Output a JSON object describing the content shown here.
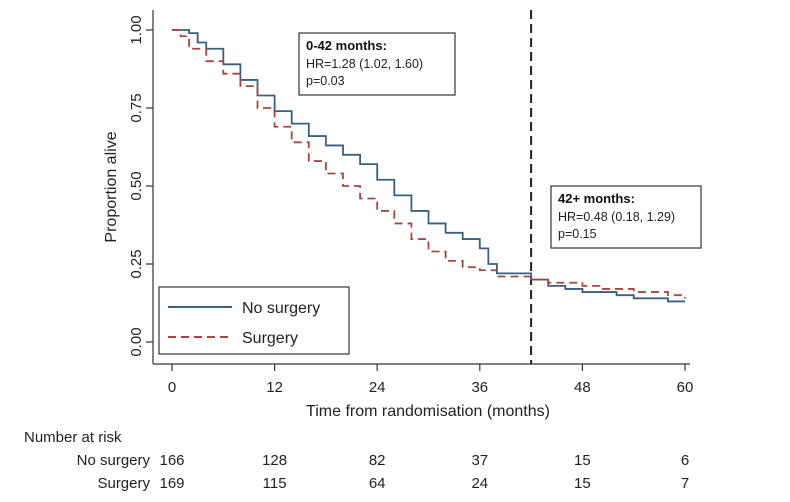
{
  "chart_data": {
    "type": "line",
    "subtype": "kaplan-meier",
    "xlabel": "Time from randomisation (months)",
    "ylabel": "Proportion alive",
    "xlim": [
      0,
      60
    ],
    "ylim": [
      0,
      1
    ],
    "x_ticks": [
      0,
      12,
      24,
      36,
      48,
      60
    ],
    "y_ticks": [
      "0.00",
      "0.25",
      "0.50",
      "0.75",
      "1.00"
    ],
    "reference_line_x": 42,
    "colors": {
      "no_surgery": "#3a5f80",
      "surgery": "#a84545"
    },
    "series": [
      {
        "name": "No surgery",
        "style": "solid",
        "x": [
          0,
          1,
          2,
          3,
          4,
          6,
          8,
          10,
          12,
          14,
          16,
          18,
          20,
          22,
          24,
          26,
          28,
          30,
          32,
          34,
          36,
          37,
          38,
          40,
          42,
          44,
          46,
          48,
          50,
          52,
          54,
          56,
          58,
          60
        ],
        "y": [
          1.0,
          1.0,
          0.99,
          0.96,
          0.94,
          0.89,
          0.84,
          0.79,
          0.74,
          0.7,
          0.66,
          0.63,
          0.6,
          0.57,
          0.52,
          0.47,
          0.42,
          0.38,
          0.35,
          0.33,
          0.3,
          0.25,
          0.22,
          0.22,
          0.2,
          0.18,
          0.17,
          0.16,
          0.16,
          0.15,
          0.14,
          0.14,
          0.13,
          0.13
        ]
      },
      {
        "name": "Surgery",
        "style": "dashed",
        "x": [
          0,
          1,
          2,
          4,
          6,
          8,
          10,
          12,
          14,
          16,
          18,
          20,
          22,
          24,
          26,
          28,
          30,
          32,
          34,
          36,
          38,
          40,
          42,
          44,
          46,
          48,
          50,
          52,
          54,
          56,
          58,
          60
        ],
        "y": [
          1.0,
          0.98,
          0.94,
          0.9,
          0.86,
          0.82,
          0.75,
          0.69,
          0.64,
          0.58,
          0.54,
          0.5,
          0.46,
          0.42,
          0.38,
          0.33,
          0.29,
          0.26,
          0.24,
          0.23,
          0.21,
          0.21,
          0.2,
          0.19,
          0.19,
          0.18,
          0.17,
          0.17,
          0.16,
          0.16,
          0.15,
          0.14
        ]
      }
    ],
    "annotations": [
      {
        "title": "0-42 months:",
        "lines": [
          "HR=1.28 (1.02, 1.60)",
          "p=0.03"
        ]
      },
      {
        "title": "42+ months:",
        "lines": [
          "HR=0.48 (0.18, 1.29)",
          "p=0.15"
        ]
      }
    ],
    "legend": {
      "placement": "bottom-left",
      "entries": [
        "No surgery",
        "Surgery"
      ]
    },
    "number_at_risk": {
      "title": "Number at risk",
      "rows": [
        {
          "label": "No surgery",
          "values": [
            "166",
            "128",
            "82",
            "37",
            "15",
            "6"
          ]
        },
        {
          "label": "Surgery",
          "values": [
            "169",
            "115",
            "64",
            "24",
            "15",
            "7"
          ]
        }
      ]
    }
  }
}
